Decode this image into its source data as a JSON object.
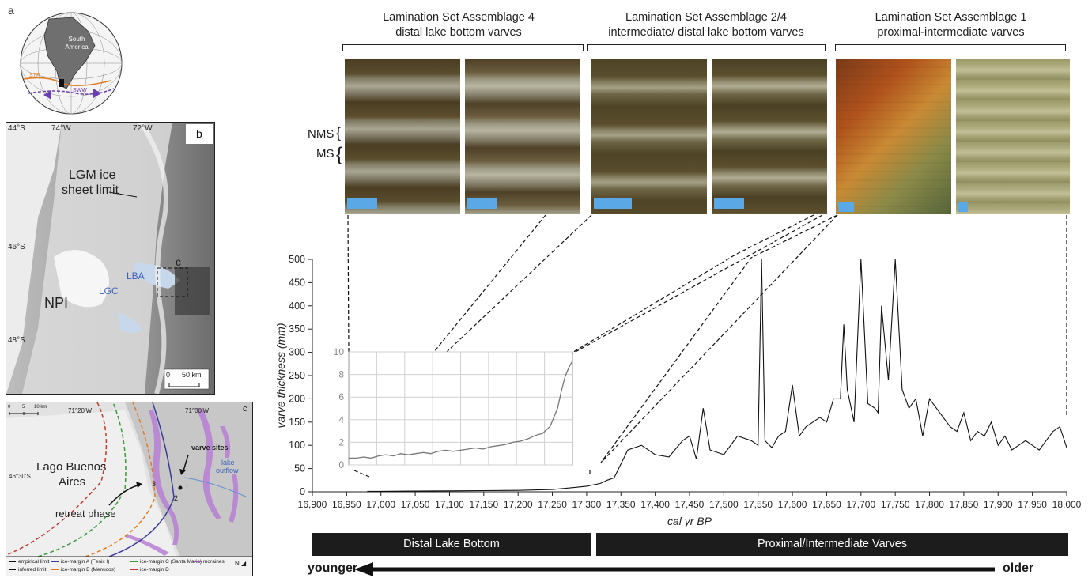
{
  "figure": {
    "panel_a": {
      "letter": "a",
      "continent": "South America",
      "labels": [
        "STF",
        "SWW"
      ]
    },
    "panel_b": {
      "letter": "b",
      "lat_labels": [
        "44°S",
        "46°S",
        "48°S"
      ],
      "lon_labels": [
        "74°W",
        "72°W"
      ],
      "ice_limit_label_1": "LGM ice",
      "ice_limit_label_2": "sheet limit",
      "box_label": "c",
      "lba": "LBA",
      "lgc": "LGC",
      "npi": "NPI",
      "scale_0": "0",
      "scale_50": "50 km"
    },
    "panel_c": {
      "letter": "c",
      "scale_labels": [
        "0",
        "5",
        "10 km"
      ],
      "lon_labels": [
        "71°20'W",
        "71°00'W"
      ],
      "lat_label": "46°30'S",
      "lake_1": "Lago Buenos",
      "lake_2": "Aires",
      "varve_sites": "varve sites",
      "lake_outflow_1": "lake",
      "lake_outflow_2": "outflow",
      "retreat": "retreat phase",
      "numbers": [
        "1",
        "2",
        "3"
      ],
      "north": "N",
      "legend": [
        {
          "label": "empirical limit",
          "color": "#111111",
          "style": "solid"
        },
        {
          "label": "inferred limit",
          "color": "#111111",
          "style": "dashed"
        },
        {
          "label": "ice-margin A (Fenix I)",
          "color": "#3b3b9a",
          "style": "solid"
        },
        {
          "label": "ice-margin B (Menucos)",
          "color": "#e07b20",
          "style": "solid"
        },
        {
          "label": "ice-margin C (Santa Maria)",
          "color": "#3a9a3a",
          "style": "solid"
        },
        {
          "label": "ice-margin D",
          "color": "#c0392b",
          "style": "solid"
        },
        {
          "label": "moraines",
          "color": "#a05ac0",
          "style": "solid"
        }
      ]
    },
    "headers": [
      {
        "line1": "Lamination Set Assemblage 4",
        "line2": "distal lake bottom varves"
      },
      {
        "line1": "Lamination Set Assemblage 2/4",
        "line2": "intermediate/ distal lake bottom varves"
      },
      {
        "line1": "Lamination Set Assemblage 1",
        "line2": "proximal-intermediate varves"
      }
    ],
    "nms": "NMS",
    "ms": "MS",
    "bottom_bars": {
      "left": "Distal Lake Bottom",
      "right": "Proximal/Intermediate Varves"
    },
    "arrow": {
      "left": "younger",
      "right": "older"
    }
  },
  "chart_data": [
    {
      "type": "line",
      "xlabel": "cal yr BP",
      "ylabel": "varve thickness (mm)",
      "xlim": [
        16900,
        18000
      ],
      "ylim": [
        0,
        500
      ],
      "x_ticks": [
        "16,900",
        "16,950",
        "17,000",
        "17,050",
        "17,100",
        "17,150",
        "17,200",
        "17,250",
        "17,300",
        "17,350",
        "17,400",
        "17,450",
        "17,500",
        "17,550",
        "17,600",
        "17,650",
        "17,700",
        "17,750",
        "17,800",
        "17,850",
        "17,900",
        "17,950",
        "18,000"
      ],
      "y_ticks": [
        "0",
        "50",
        "100",
        "150",
        "200",
        "250",
        "300",
        "350",
        "400",
        "450",
        "500"
      ],
      "series": [
        {
          "x": [
            16980,
            17000,
            17050,
            17100,
            17150,
            17200,
            17250,
            17280,
            17300,
            17320,
            17330,
            17340,
            17350,
            17360,
            17380,
            17400,
            17420,
            17440,
            17450,
            17460,
            17470,
            17480,
            17500,
            17520,
            17540,
            17550,
            17555,
            17560,
            17570,
            17580,
            17590,
            17600,
            17610,
            17620,
            17630,
            17640,
            17650,
            17660,
            17670,
            17675,
            17680,
            17690,
            17700,
            17710,
            17720,
            17725,
            17730,
            17740,
            17750,
            17760,
            17770,
            17780,
            17790,
            17800,
            17810,
            17820,
            17830,
            17840,
            17850,
            17860,
            17870,
            17880,
            17890,
            17900,
            17910,
            17920,
            17930,
            17940,
            17950,
            17960,
            17970,
            17980,
            17990,
            18000
          ],
          "y": [
            1,
            1,
            1.5,
            2,
            2.5,
            3,
            5,
            9,
            12,
            18,
            25,
            30,
            60,
            90,
            100,
            80,
            75,
            110,
            120,
            70,
            180,
            90,
            80,
            120,
            110,
            100,
            500,
            110,
            95,
            120,
            130,
            230,
            120,
            140,
            150,
            160,
            150,
            200,
            200,
            360,
            220,
            150,
            500,
            190,
            180,
            170,
            400,
            240,
            500,
            220,
            180,
            200,
            120,
            200,
            180,
            160,
            140,
            130,
            170,
            110,
            130,
            120,
            150,
            100,
            120,
            90,
            100,
            110,
            100,
            90,
            110,
            130,
            140,
            95
          ]
        }
      ]
    },
    {
      "type": "line",
      "xlim": [
        16980,
        17280
      ],
      "ylim": [
        0,
        10
      ],
      "y_ticks": [
        "0",
        "2",
        "4",
        "6",
        "8",
        "10"
      ],
      "series": [
        {
          "x": [
            16980,
            16990,
            17000,
            17010,
            17020,
            17030,
            17040,
            17050,
            17060,
            17070,
            17080,
            17090,
            17100,
            17110,
            17120,
            17130,
            17140,
            17150,
            17160,
            17170,
            17180,
            17190,
            17200,
            17210,
            17220,
            17230,
            17240,
            17250,
            17255,
            17260,
            17265,
            17270,
            17275,
            17280
          ],
          "y": [
            0.6,
            0.6,
            0.7,
            0.6,
            0.8,
            0.9,
            0.8,
            1.0,
            0.9,
            1.0,
            1.1,
            1.0,
            1.2,
            1.3,
            1.2,
            1.3,
            1.4,
            1.5,
            1.4,
            1.6,
            1.7,
            1.8,
            2.0,
            2.1,
            2.3,
            2.6,
            2.8,
            3.4,
            4.2,
            5.0,
            6.5,
            7.8,
            8.6,
            9.2
          ]
        }
      ]
    }
  ]
}
